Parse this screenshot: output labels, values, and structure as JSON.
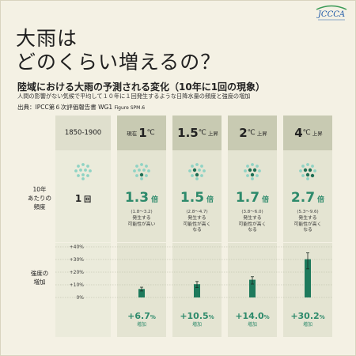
{
  "title": {
    "line1": "大雨は",
    "line2": "どのくらい増えるの？"
  },
  "subtitle": "陸域における大雨の予測される変化（10年に1回の現象）",
  "description": "人間の影響がない気候で平均して１０年に１回発生するような日降水量の頻度と強度の増加",
  "source": {
    "text": "出典：IPCC第６次評価報告書 WG1",
    "figure": "Figure SPM.6"
  },
  "logo": {
    "text": "JCCCA",
    "colors": {
      "blue": "#1f5aa8",
      "green": "#3a9a56"
    }
  },
  "row_labels": {
    "frequency": "10年\nあたりの\n頻度",
    "intensity": "強度の\n増加"
  },
  "colors": {
    "accent": "#2d8a6b",
    "header": "#c8cab2",
    "column": "#e4e4d2",
    "background": "#f4f1e4"
  },
  "columns": [
    {
      "pre": "",
      "big": "1850-1900",
      "unit": "",
      "post": "",
      "frequency": "1",
      "freq_unit": "回",
      "range": "",
      "note": "",
      "dark_dots": 0
    },
    {
      "pre": "現在",
      "big": "1",
      "unit": "℃",
      "post": "",
      "frequency": "1.3",
      "freq_unit": "倍",
      "range": "(1.8〜3.2)",
      "note": "発生する\n可能性が高い",
      "dark_dots": 1
    },
    {
      "pre": "",
      "big": "1.5",
      "unit": "℃",
      "post": "上昇",
      "frequency": "1.5",
      "freq_unit": "倍",
      "range": "(2.8〜4.7)",
      "note": "発生する\n可能性が高く\nなる",
      "dark_dots": 2
    },
    {
      "pre": "",
      "big": "2",
      "unit": "℃",
      "post": "上昇",
      "frequency": "1.7",
      "freq_unit": "倍",
      "range": "(3.8〜6.0)",
      "note": "発生する\n可能性が高く\nなる",
      "dark_dots": 3
    },
    {
      "pre": "",
      "big": "4",
      "unit": "℃",
      "post": "上昇",
      "frequency": "2.7",
      "freq_unit": "倍",
      "range": "(5.3〜9.6)",
      "note": "発生する\n可能性が高く\nなる",
      "dark_dots": 4
    }
  ],
  "chart_data": {
    "type": "bar",
    "categories": [
      "現在 1℃",
      "1.5℃上昇",
      "2℃上昇",
      "4℃上昇"
    ],
    "values": [
      6.7,
      10.5,
      14.0,
      30.2
    ],
    "errors_low": [
      5.1,
      7.8,
      10.6,
      22.6
    ],
    "errors_high": [
      8.1,
      12.6,
      16.4,
      35.2
    ],
    "value_labels": [
      "+6.7",
      "+10.5",
      "+14.0",
      "+30.2"
    ],
    "value_unit": "%",
    "increase_label": "増加",
    "ylim": [
      0,
      40
    ],
    "yticks": [
      "0%",
      "+10%",
      "+20%",
      "+30%",
      "+40%"
    ],
    "ytick_values": [
      0,
      10,
      20,
      30,
      40
    ]
  }
}
